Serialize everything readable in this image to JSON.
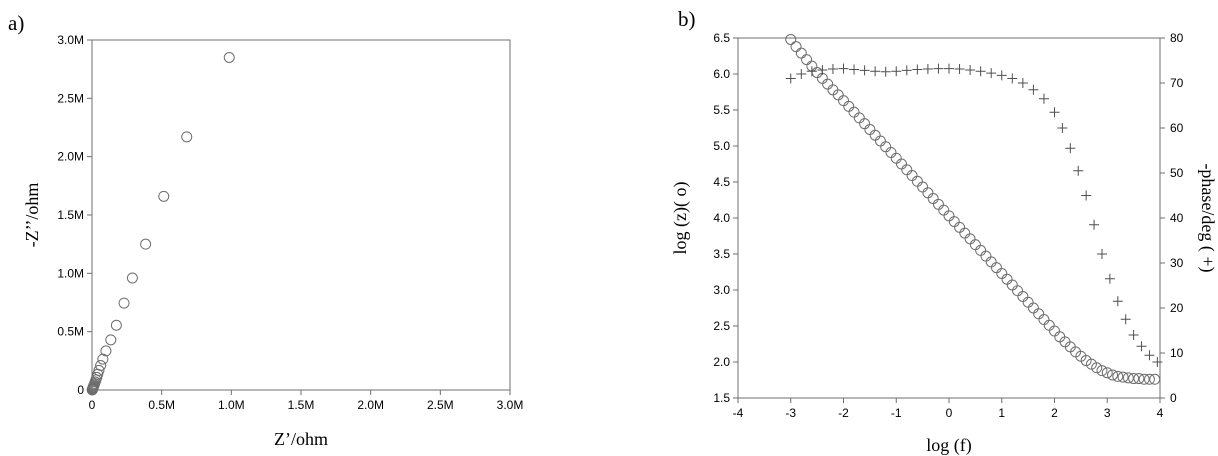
{
  "chart_data": [
    {
      "type": "scatter",
      "panel_label": "a)",
      "title": "",
      "xlabel": "Z’/ohm",
      "ylabel": "-Z’’/ohm",
      "xlim": [
        0,
        3000000
      ],
      "ylim": [
        0,
        3000000
      ],
      "x_ticks": [
        {
          "value": 0,
          "label": "0"
        },
        {
          "value": 500000,
          "label": "0.5M"
        },
        {
          "value": 1000000,
          "label": "1.0M"
        },
        {
          "value": 1500000,
          "label": "1.5M"
        },
        {
          "value": 2000000,
          "label": "2.0M"
        },
        {
          "value": 2500000,
          "label": "2.5M"
        },
        {
          "value": 3000000,
          "label": "3.0M"
        }
      ],
      "y_ticks": [
        {
          "value": 0,
          "label": "0"
        },
        {
          "value": 500000,
          "label": "0.5M"
        },
        {
          "value": 1000000,
          "label": "1.0M"
        },
        {
          "value": 1500000,
          "label": "1.5M"
        },
        {
          "value": 2000000,
          "label": "2.0M"
        },
        {
          "value": 2500000,
          "label": "2.5M"
        },
        {
          "value": 3000000,
          "label": "3.0M"
        }
      ],
      "grid": false,
      "series": [
        {
          "marker": "circle",
          "points": [
            [
              985000,
              2850000
            ],
            [
              680000,
              2170000
            ],
            [
              515000,
              1660000
            ],
            [
              385000,
              1250000
            ],
            [
              290000,
              960000
            ],
            [
              230000,
              745000
            ],
            [
              175000,
              555000
            ],
            [
              135000,
              430000
            ],
            [
              100000,
              335000
            ],
            [
              78000,
              265000
            ],
            [
              62000,
              210000
            ],
            [
              50000,
              168000
            ],
            [
              41000,
              135000
            ],
            [
              34000,
              108000
            ],
            [
              28000,
              87000
            ],
            [
              23000,
              70000
            ],
            [
              19000,
              56000
            ],
            [
              15500,
              45000
            ],
            [
              12500,
              36000
            ],
            [
              10000,
              28000
            ],
            [
              8000,
              21000
            ],
            [
              6300,
              15500
            ],
            [
              5000,
              11000
            ],
            [
              4000,
              7500
            ],
            [
              3200,
              4800
            ],
            [
              2600,
              2800
            ],
            [
              2100,
              1500
            ],
            [
              1800,
              700
            ]
          ]
        }
      ]
    },
    {
      "type": "scatter",
      "panel_label": "b)",
      "title": "",
      "xlabel": "log (f)",
      "ylabel": "log (z)( o)",
      "y2label": "-phase/deg ( +)",
      "xlim": [
        -4,
        4
      ],
      "ylim": [
        1.5,
        6.5
      ],
      "y2lim": [
        0,
        80
      ],
      "x_ticks": [
        {
          "value": -4,
          "label": "-4"
        },
        {
          "value": -3,
          "label": "-3"
        },
        {
          "value": -2,
          "label": "-2"
        },
        {
          "value": -1,
          "label": "-1"
        },
        {
          "value": 0,
          "label": "0"
        },
        {
          "value": 1,
          "label": "1"
        },
        {
          "value": 2,
          "label": "2"
        },
        {
          "value": 3,
          "label": "3"
        },
        {
          "value": 4,
          "label": "4"
        }
      ],
      "y_ticks": [
        {
          "value": 1.5,
          "label": "1.5"
        },
        {
          "value": 2.0,
          "label": "2.0"
        },
        {
          "value": 2.5,
          "label": "2.5"
        },
        {
          "value": 3.0,
          "label": "3.0"
        },
        {
          "value": 3.5,
          "label": "3.5"
        },
        {
          "value": 4.0,
          "label": "4.0"
        },
        {
          "value": 4.5,
          "label": "4.5"
        },
        {
          "value": 5.0,
          "label": "5.0"
        },
        {
          "value": 5.5,
          "label": "5.5"
        },
        {
          "value": 6.0,
          "label": "6.0"
        },
        {
          "value": 6.5,
          "label": "6.5"
        }
      ],
      "y2_ticks": [
        {
          "value": 0,
          "label": "0"
        },
        {
          "value": 10,
          "label": "10"
        },
        {
          "value": 20,
          "label": "20"
        },
        {
          "value": 30,
          "label": "30"
        },
        {
          "value": 40,
          "label": "40"
        },
        {
          "value": 50,
          "label": "50"
        },
        {
          "value": 60,
          "label": "60"
        },
        {
          "value": 70,
          "label": "70"
        },
        {
          "value": 80,
          "label": "80"
        }
      ],
      "grid": false,
      "series": [
        {
          "marker": "circle",
          "axis": "left",
          "points": [
            [
              -3.0,
              6.48
            ],
            [
              -2.9,
              6.38
            ],
            [
              -2.8,
              6.29
            ],
            [
              -2.7,
              6.2
            ],
            [
              -2.6,
              6.11
            ],
            [
              -2.5,
              6.02
            ],
            [
              -2.4,
              5.94
            ],
            [
              -2.3,
              5.86
            ],
            [
              -2.2,
              5.78
            ],
            [
              -2.1,
              5.71
            ],
            [
              -2.0,
              5.63
            ],
            [
              -1.9,
              5.55
            ],
            [
              -1.8,
              5.47
            ],
            [
              -1.7,
              5.39
            ],
            [
              -1.6,
              5.31
            ],
            [
              -1.5,
              5.23
            ],
            [
              -1.4,
              5.15
            ],
            [
              -1.3,
              5.07
            ],
            [
              -1.2,
              4.99
            ],
            [
              -1.1,
              4.91
            ],
            [
              -1.0,
              4.83
            ],
            [
              -0.9,
              4.75
            ],
            [
              -0.8,
              4.67
            ],
            [
              -0.7,
              4.59
            ],
            [
              -0.6,
              4.51
            ],
            [
              -0.5,
              4.43
            ],
            [
              -0.4,
              4.35
            ],
            [
              -0.3,
              4.27
            ],
            [
              -0.2,
              4.19
            ],
            [
              -0.1,
              4.11
            ],
            [
              0.0,
              4.03
            ],
            [
              0.1,
              3.95
            ],
            [
              0.2,
              3.87
            ],
            [
              0.3,
              3.79
            ],
            [
              0.4,
              3.71
            ],
            [
              0.5,
              3.63
            ],
            [
              0.6,
              3.55
            ],
            [
              0.7,
              3.47
            ],
            [
              0.8,
              3.39
            ],
            [
              0.9,
              3.31
            ],
            [
              1.0,
              3.23
            ],
            [
              1.1,
              3.15
            ],
            [
              1.2,
              3.07
            ],
            [
              1.3,
              2.99
            ],
            [
              1.4,
              2.91
            ],
            [
              1.5,
              2.83
            ],
            [
              1.6,
              2.75
            ],
            [
              1.7,
              2.67
            ],
            [
              1.8,
              2.59
            ],
            [
              1.9,
              2.51
            ],
            [
              2.0,
              2.43
            ],
            [
              2.1,
              2.35
            ],
            [
              2.2,
              2.28
            ],
            [
              2.3,
              2.21
            ],
            [
              2.4,
              2.14
            ],
            [
              2.5,
              2.08
            ],
            [
              2.6,
              2.02
            ],
            [
              2.7,
              1.97
            ],
            [
              2.8,
              1.92
            ],
            [
              2.9,
              1.88
            ],
            [
              3.0,
              1.85
            ],
            [
              3.1,
              1.82
            ],
            [
              3.2,
              1.8
            ],
            [
              3.3,
              1.79
            ],
            [
              3.4,
              1.78
            ],
            [
              3.5,
              1.77
            ],
            [
              3.6,
              1.77
            ],
            [
              3.7,
              1.76
            ],
            [
              3.8,
              1.76
            ],
            [
              3.9,
              1.76
            ]
          ]
        },
        {
          "marker": "plus",
          "axis": "right",
          "points": [
            [
              -3.0,
              71.0
            ],
            [
              -2.8,
              72.0
            ],
            [
              -2.6,
              72.6
            ],
            [
              -2.4,
              72.9
            ],
            [
              -2.2,
              73.1
            ],
            [
              -2.0,
              73.2
            ],
            [
              -1.8,
              73.0
            ],
            [
              -1.6,
              72.8
            ],
            [
              -1.4,
              72.6
            ],
            [
              -1.2,
              72.5
            ],
            [
              -1.0,
              72.6
            ],
            [
              -0.8,
              72.8
            ],
            [
              -0.6,
              73.0
            ],
            [
              -0.4,
              73.1
            ],
            [
              -0.2,
              73.2
            ],
            [
              0.0,
              73.2
            ],
            [
              0.2,
              73.1
            ],
            [
              0.4,
              72.9
            ],
            [
              0.6,
              72.6
            ],
            [
              0.8,
              72.2
            ],
            [
              1.0,
              71.7
            ],
            [
              1.2,
              71.0
            ],
            [
              1.4,
              70.0
            ],
            [
              1.6,
              68.5
            ],
            [
              1.8,
              66.5
            ],
            [
              2.0,
              63.5
            ],
            [
              2.15,
              60.0
            ],
            [
              2.3,
              55.5
            ],
            [
              2.45,
              50.5
            ],
            [
              2.6,
              45.0
            ],
            [
              2.75,
              38.5
            ],
            [
              2.9,
              32.0
            ],
            [
              3.05,
              26.5
            ],
            [
              3.2,
              21.5
            ],
            [
              3.35,
              17.5
            ],
            [
              3.5,
              14.0
            ],
            [
              3.65,
              11.5
            ],
            [
              3.8,
              9.5
            ],
            [
              3.95,
              8.0
            ]
          ]
        }
      ]
    }
  ]
}
